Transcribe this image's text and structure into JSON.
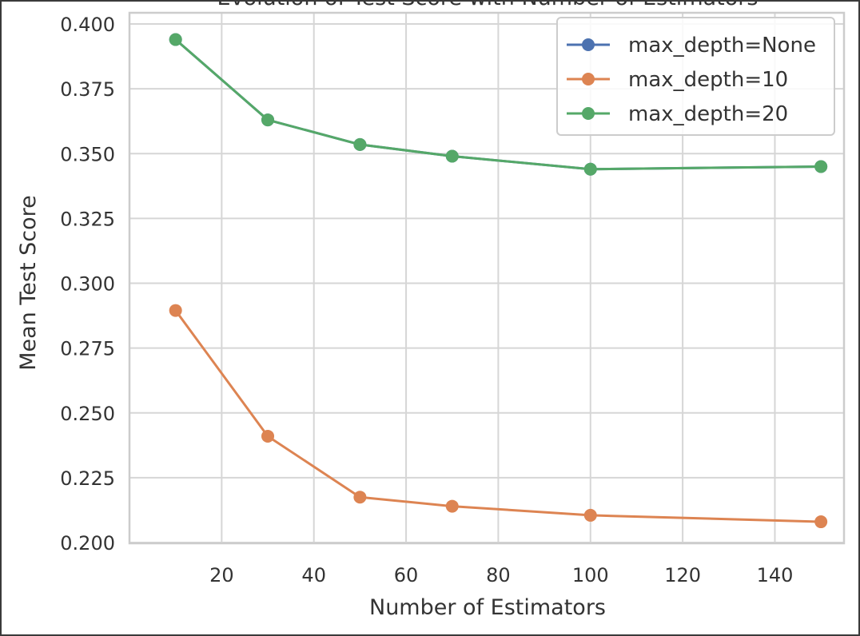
{
  "chart_data": {
    "type": "line",
    "title": "Evolution of Test Score with Number of Estimators",
    "xlabel": "Number of Estimators",
    "ylabel": "Mean Test Score",
    "xlim": [
      0,
      155
    ],
    "ylim": [
      0.2,
      0.4
    ],
    "xticks": [
      20,
      40,
      60,
      80,
      100,
      120,
      140
    ],
    "xtick_labels": [
      "20",
      "40",
      "60",
      "80",
      "100",
      "120",
      "140"
    ],
    "yticks": [
      0.2,
      0.225,
      0.25,
      0.275,
      0.3,
      0.325,
      0.35,
      0.375,
      0.4
    ],
    "ytick_labels": [
      "0.200",
      "0.225",
      "0.250",
      "0.275",
      "0.300",
      "0.325",
      "0.350",
      "0.375",
      "0.400"
    ],
    "grid": true,
    "legend_position": "top-right",
    "series": [
      {
        "name": "max_depth=None",
        "color": "#4c72b0",
        "x": [
          10,
          30,
          50,
          70,
          100,
          150
        ],
        "y": [
          0.394,
          0.363,
          0.3535,
          0.349,
          0.344,
          0.345
        ]
      },
      {
        "name": "max_depth=10",
        "color": "#dd8452",
        "x": [
          10,
          30,
          50,
          70,
          100,
          150
        ],
        "y": [
          0.2895,
          0.241,
          0.2175,
          0.214,
          0.2105,
          0.208
        ]
      },
      {
        "name": "max_depth=20",
        "color": "#55a868",
        "x": [
          10,
          30,
          50,
          70,
          100,
          150
        ],
        "y": [
          0.394,
          0.363,
          0.3535,
          0.349,
          0.344,
          0.345
        ]
      }
    ]
  }
}
